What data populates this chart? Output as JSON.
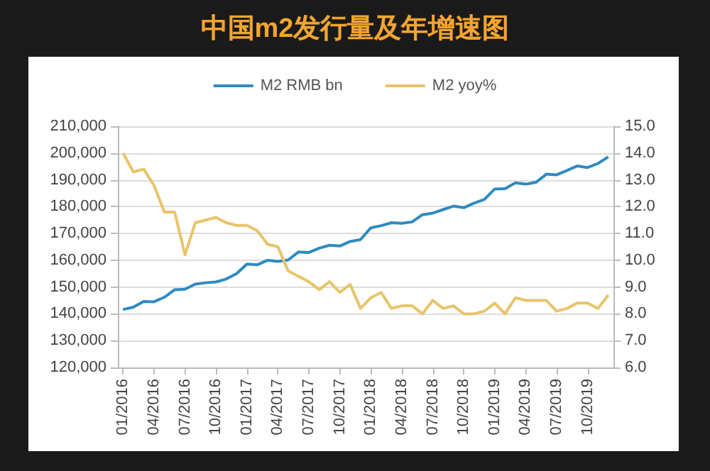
{
  "chart_data": {
    "type": "line",
    "title": "中国m2发行量及年增速图",
    "categories": [
      "01/2016",
      null,
      null,
      "04/2016",
      null,
      null,
      "07/2016",
      null,
      null,
      "10/2016",
      null,
      null,
      "01/2017",
      null,
      null,
      "04/2017",
      null,
      null,
      "07/2017",
      null,
      null,
      "10/2017",
      null,
      null,
      "01/2018",
      null,
      null,
      "04/2018",
      null,
      null,
      "07/2018",
      null,
      null,
      "10/2018",
      null,
      null,
      "01/2019",
      null,
      null,
      "04/2019",
      null,
      null,
      "07/2019",
      null,
      null,
      "10/2019",
      null,
      null
    ],
    "series": [
      {
        "name": "M2 RMB bn",
        "color": "#2e8bc0",
        "values": [
          141600,
          142500,
          144600,
          144500,
          146200,
          149000,
          149200,
          151100,
          151600,
          151900,
          153000,
          155000,
          158600,
          158300,
          160000,
          159600,
          160100,
          163100,
          162900,
          164500,
          165600,
          165300,
          167000,
          167700,
          172100,
          172900,
          174000,
          173800,
          174300,
          177000,
          177600,
          178900,
          180200,
          179600,
          181300,
          182700,
          186600,
          186700,
          188900,
          188400,
          189100,
          192100,
          191900,
          193500,
          195200,
          194600,
          196100,
          198600
        ]
      },
      {
        "name": "M2 yoy%",
        "color": "#e8c46a",
        "axis": "y2",
        "values": [
          14.0,
          13.3,
          13.4,
          12.8,
          11.8,
          11.8,
          10.2,
          11.4,
          11.5,
          11.6,
          11.4,
          11.3,
          11.3,
          11.1,
          10.6,
          10.5,
          9.6,
          9.4,
          9.2,
          8.9,
          9.2,
          8.8,
          9.1,
          8.2,
          8.6,
          8.8,
          8.2,
          8.3,
          8.3,
          8.0,
          8.5,
          8.2,
          8.3,
          8.0,
          8.0,
          8.1,
          8.4,
          8.0,
          8.6,
          8.5,
          8.5,
          8.5,
          8.1,
          8.2,
          8.4,
          8.4,
          8.2,
          8.7
        ]
      }
    ],
    "ylim": [
      120000,
      210000
    ],
    "yticks": [
      {
        "value": 120000,
        "label": "120,000"
      },
      {
        "value": 130000,
        "label": "130,000"
      },
      {
        "value": 140000,
        "label": "140,000"
      },
      {
        "value": 150000,
        "label": "150,000"
      },
      {
        "value": 160000,
        "label": "160,000"
      },
      {
        "value": 170000,
        "label": "170,000"
      },
      {
        "value": 180000,
        "label": "180,000"
      },
      {
        "value": 190000,
        "label": "190,000"
      },
      {
        "value": 200000,
        "label": "200,000"
      },
      {
        "value": 210000,
        "label": "210,000"
      }
    ],
    "y2lim": [
      6,
      15
    ],
    "y2ticks": [
      {
        "value": 6,
        "label": "6.0"
      },
      {
        "value": 7,
        "label": "7.0"
      },
      {
        "value": 8,
        "label": "8.0"
      },
      {
        "value": 9,
        "label": "9.0"
      },
      {
        "value": 10,
        "label": "10.0"
      },
      {
        "value": 11,
        "label": "11.0"
      },
      {
        "value": 12,
        "label": "12.0"
      },
      {
        "value": 13,
        "label": "13.0"
      },
      {
        "value": 14,
        "label": "14.0"
      },
      {
        "value": 15,
        "label": "15.0"
      }
    ],
    "grid": "y",
    "legend": "top",
    "marker": "none"
  }
}
